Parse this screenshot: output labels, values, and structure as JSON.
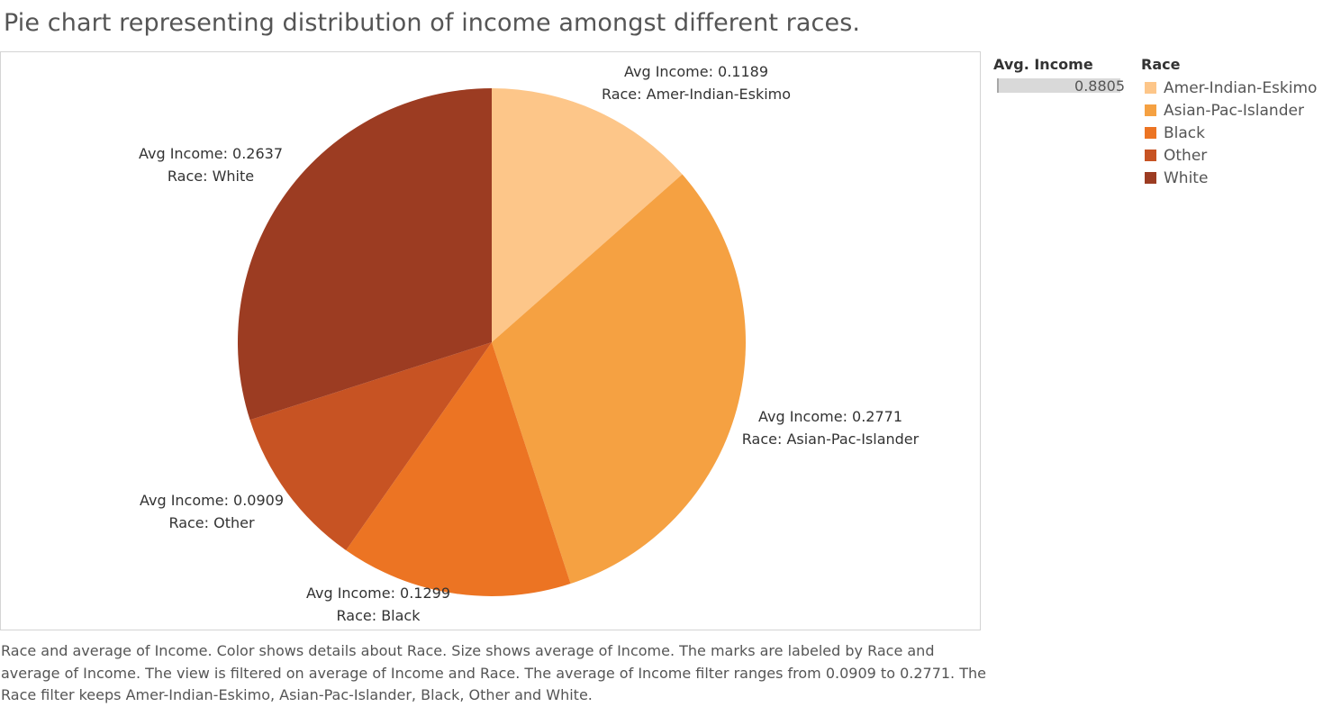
{
  "title": "Pie chart representing distribution of income amongst  different races.",
  "caption": "Race and average of Income.  Color shows details about Race.  Size shows average of Income.  The marks are labeled by Race and average of Income. The view is filtered on average of Income and Race. The average of Income filter ranges from 0.0909 to 0.2771. The Race filter keeps Amer-Indian-Eskimo, Asian-Pac-Islander, Black, Other and White.",
  "legend_size": {
    "title": "Avg. Income",
    "value": "0.8805",
    "fill_fraction": 0.98
  },
  "legend_race": {
    "title": "Race",
    "items": [
      {
        "label": "Amer-Indian-Eskimo",
        "color": "#fdc689"
      },
      {
        "label": "Asian-Pac-Islander",
        "color": "#f5a142"
      },
      {
        "label": "Black",
        "color": "#ec7423"
      },
      {
        "label": "Other",
        "color": "#c75323"
      },
      {
        "label": "White",
        "color": "#9c3c22"
      }
    ]
  },
  "chart_data": {
    "type": "pie",
    "title": "Pie chart representing distribution of income amongst  different races.",
    "measure": "Avg Income",
    "dimension": "Race",
    "start_angle_deg": 0,
    "direction": "clockwise",
    "slices": [
      {
        "race": "Amer-Indian-Eskimo",
        "value": 0.1189,
        "color": "#fdc689",
        "label_lines": [
          "Avg Income: 0.1189",
          "Race: Amer-Indian-Eskimo"
        ]
      },
      {
        "race": "Asian-Pac-Islander",
        "value": 0.2771,
        "color": "#f5a142",
        "label_lines": [
          "Avg Income: 0.2771",
          "Race: Asian-Pac-Islander"
        ]
      },
      {
        "race": "Black",
        "value": 0.1299,
        "color": "#ec7423",
        "label_lines": [
          "Avg Income: 0.1299",
          "Race: Black"
        ]
      },
      {
        "race": "Other",
        "value": 0.0909,
        "color": "#c75323",
        "label_lines": [
          "Avg Income: 0.0909",
          "Race: Other"
        ]
      },
      {
        "race": "White",
        "value": 0.2637,
        "color": "#9c3c22",
        "label_lines": [
          "Avg Income: 0.2637",
          "Race: White"
        ]
      }
    ]
  }
}
